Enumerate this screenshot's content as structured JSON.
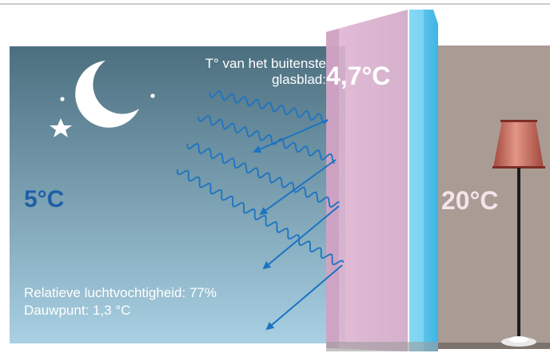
{
  "diagram": {
    "outside_label_line1": "T° van het buitenste",
    "outside_label_line2": "glasblad:",
    "outer_glass_temperature": "4,7°C",
    "outside_temperature": "5°C",
    "inside_temperature": "20°C",
    "relative_humidity": "Relatieve luchtvochtigheid: 77%",
    "dew_point": "Dauwpunt: 1,3 °C"
  },
  "colors": {
    "sky_top": "#4c6f7f",
    "sky_bottom": "#a8cfe2",
    "room_wall": "#a99c94",
    "outer_pane": "#e3b4d2",
    "inner_pane": "#56c4ec",
    "heat_waves": "#1d73c2",
    "outside_temp_text": "#1f5fa6",
    "lamp_shade": "#c06a5a"
  },
  "icons": [
    "moon-icon",
    "star-icon",
    "floor-lamp-icon"
  ]
}
